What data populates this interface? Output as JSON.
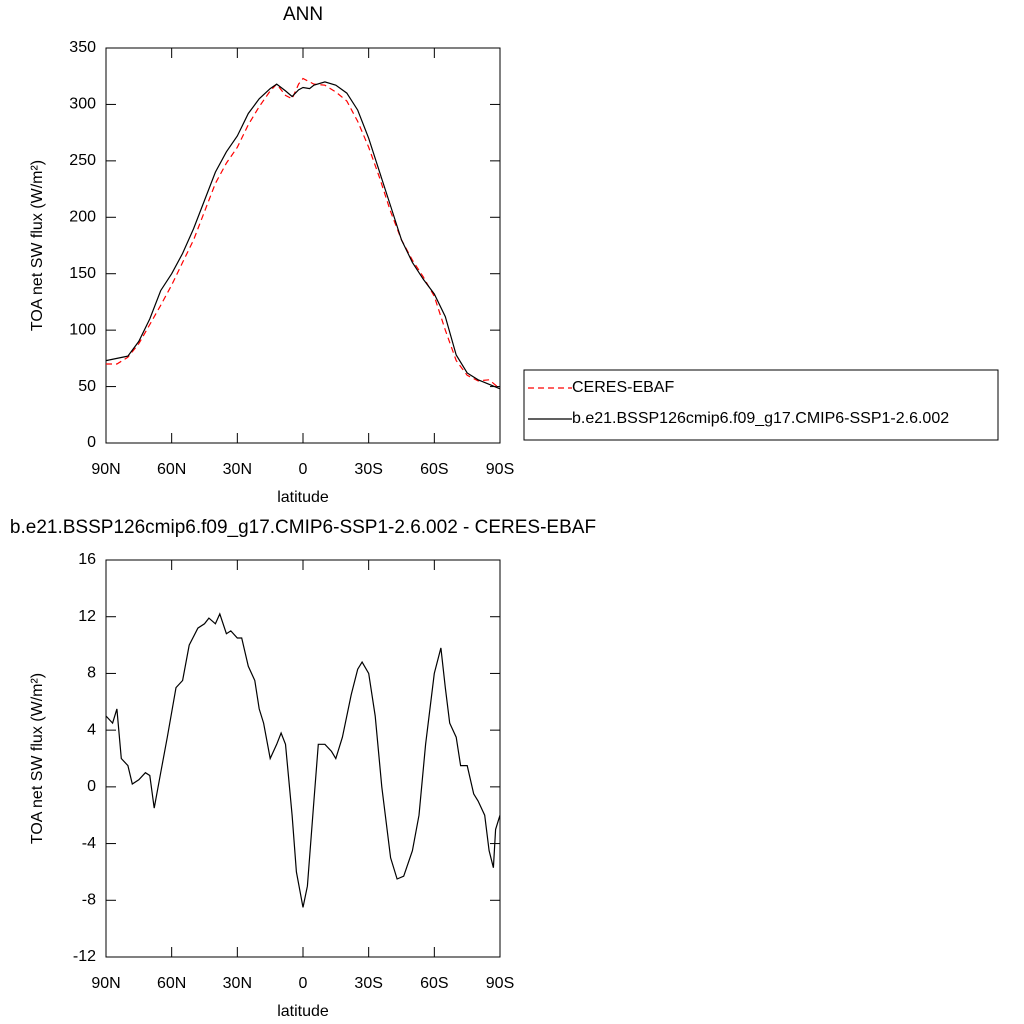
{
  "chart_data": [
    {
      "type": "line",
      "title": "ANN",
      "x_label": "latitude",
      "y_label": "TOA net SW flux (W/m²)",
      "x": [
        90,
        85,
        80,
        75,
        70,
        65,
        60,
        55,
        50,
        45,
        40,
        35,
        30,
        25,
        20,
        15,
        12,
        8,
        5,
        2,
        0,
        -3,
        -5,
        -10,
        -15,
        -20,
        -25,
        -30,
        -35,
        -40,
        -45,
        -50,
        -55,
        -60,
        -65,
        -70,
        -75,
        -80,
        -85,
        -90
      ],
      "series": [
        {
          "name": "CERES-EBAF",
          "color": "#ff0000",
          "line_style": "dashed",
          "values": [
            70,
            70,
            76,
            88,
            105,
            122,
            140,
            160,
            180,
            205,
            230,
            248,
            262,
            282,
            298,
            312,
            318,
            308,
            305,
            318,
            323,
            320,
            318,
            317,
            311,
            303,
            285,
            262,
            235,
            205,
            180,
            162,
            147,
            130,
            100,
            73,
            60,
            55,
            56,
            48
          ]
        },
        {
          "name": "b.e21.BSSP126cmip6.f09_g17.CMIP6-SSP1-2.6.002",
          "color": "#000000",
          "line_style": "solid",
          "values": [
            73,
            75,
            77,
            90,
            110,
            135,
            150,
            168,
            190,
            215,
            240,
            258,
            272,
            292,
            305,
            314,
            318,
            312,
            307,
            313,
            315,
            314,
            317,
            320,
            317,
            310,
            295,
            270,
            240,
            210,
            180,
            160,
            145,
            132,
            112,
            78,
            62,
            56,
            52,
            48
          ]
        }
      ],
      "xlim": [
        90,
        -90
      ],
      "xticks": [
        {
          "value": 90,
          "label": "90N"
        },
        {
          "value": 60,
          "label": "60N"
        },
        {
          "value": 30,
          "label": "30N"
        },
        0,
        {
          "value": -30,
          "label": "30S"
        },
        {
          "value": -60,
          "label": "60S"
        },
        {
          "value": -90,
          "label": "90S"
        }
      ],
      "ylim": [
        0,
        350
      ],
      "yticks": [
        0,
        50,
        100,
        150,
        200,
        250,
        300,
        350
      ],
      "legend": "right"
    },
    {
      "type": "line",
      "title": "b.e21.BSSP126cmip6.f09_g17.CMIP6-SSP1-2.6.002 - CERES-EBAF",
      "x_label": "latitude",
      "y_label": "TOA net SW flux (W/m²)",
      "x": [
        90,
        87,
        85,
        83,
        80,
        78,
        75,
        72,
        70,
        68,
        65,
        62,
        58,
        55,
        52,
        48,
        45,
        43,
        40,
        38,
        35,
        33,
        30,
        28,
        25,
        22,
        20,
        18,
        15,
        12,
        10,
        8,
        5,
        3,
        0,
        -2,
        -5,
        -7,
        -10,
        -13,
        -15,
        -18,
        -22,
        -25,
        -27,
        -30,
        -33,
        -36,
        -40,
        -43,
        -46,
        -50,
        -53,
        -56,
        -60,
        -63,
        -65,
        -67,
        -70,
        -72,
        -75,
        -78,
        -80,
        -83,
        -85,
        -87,
        -88,
        -90
      ],
      "values": [
        5,
        4.5,
        5.5,
        2,
        1.5,
        0.2,
        0.5,
        1,
        0.8,
        -1.5,
        1,
        3.5,
        7,
        7.5,
        10,
        11.2,
        11.5,
        11.9,
        11.5,
        12.2,
        10.8,
        11,
        10.5,
        10.5,
        8.5,
        7.5,
        5.5,
        4.5,
        2,
        3,
        3.8,
        3,
        -2,
        -6,
        -8.5,
        -7,
        -1,
        3,
        3,
        2.5,
        2,
        3.5,
        6.5,
        8.3,
        8.8,
        8,
        5,
        0,
        -5,
        -6.5,
        -6.3,
        -4.5,
        -2,
        3,
        8,
        9.8,
        7,
        4.5,
        3.5,
        1.5,
        1.5,
        -0.5,
        -1,
        -2,
        -4.5,
        -5.7,
        -3,
        -2
      ],
      "color": "#000000",
      "xlim": [
        90,
        -90
      ],
      "xticks": [
        {
          "value": 90,
          "label": "90N"
        },
        {
          "value": 60,
          "label": "60N"
        },
        {
          "value": 30,
          "label": "30N"
        },
        0,
        {
          "value": -30,
          "label": "30S"
        },
        {
          "value": -60,
          "label": "60S"
        },
        {
          "value": -90,
          "label": "90S"
        }
      ],
      "ylim": [
        -12,
        16
      ],
      "yticks": [
        -12,
        -8,
        -4,
        0,
        4,
        8,
        12,
        16
      ]
    }
  ]
}
